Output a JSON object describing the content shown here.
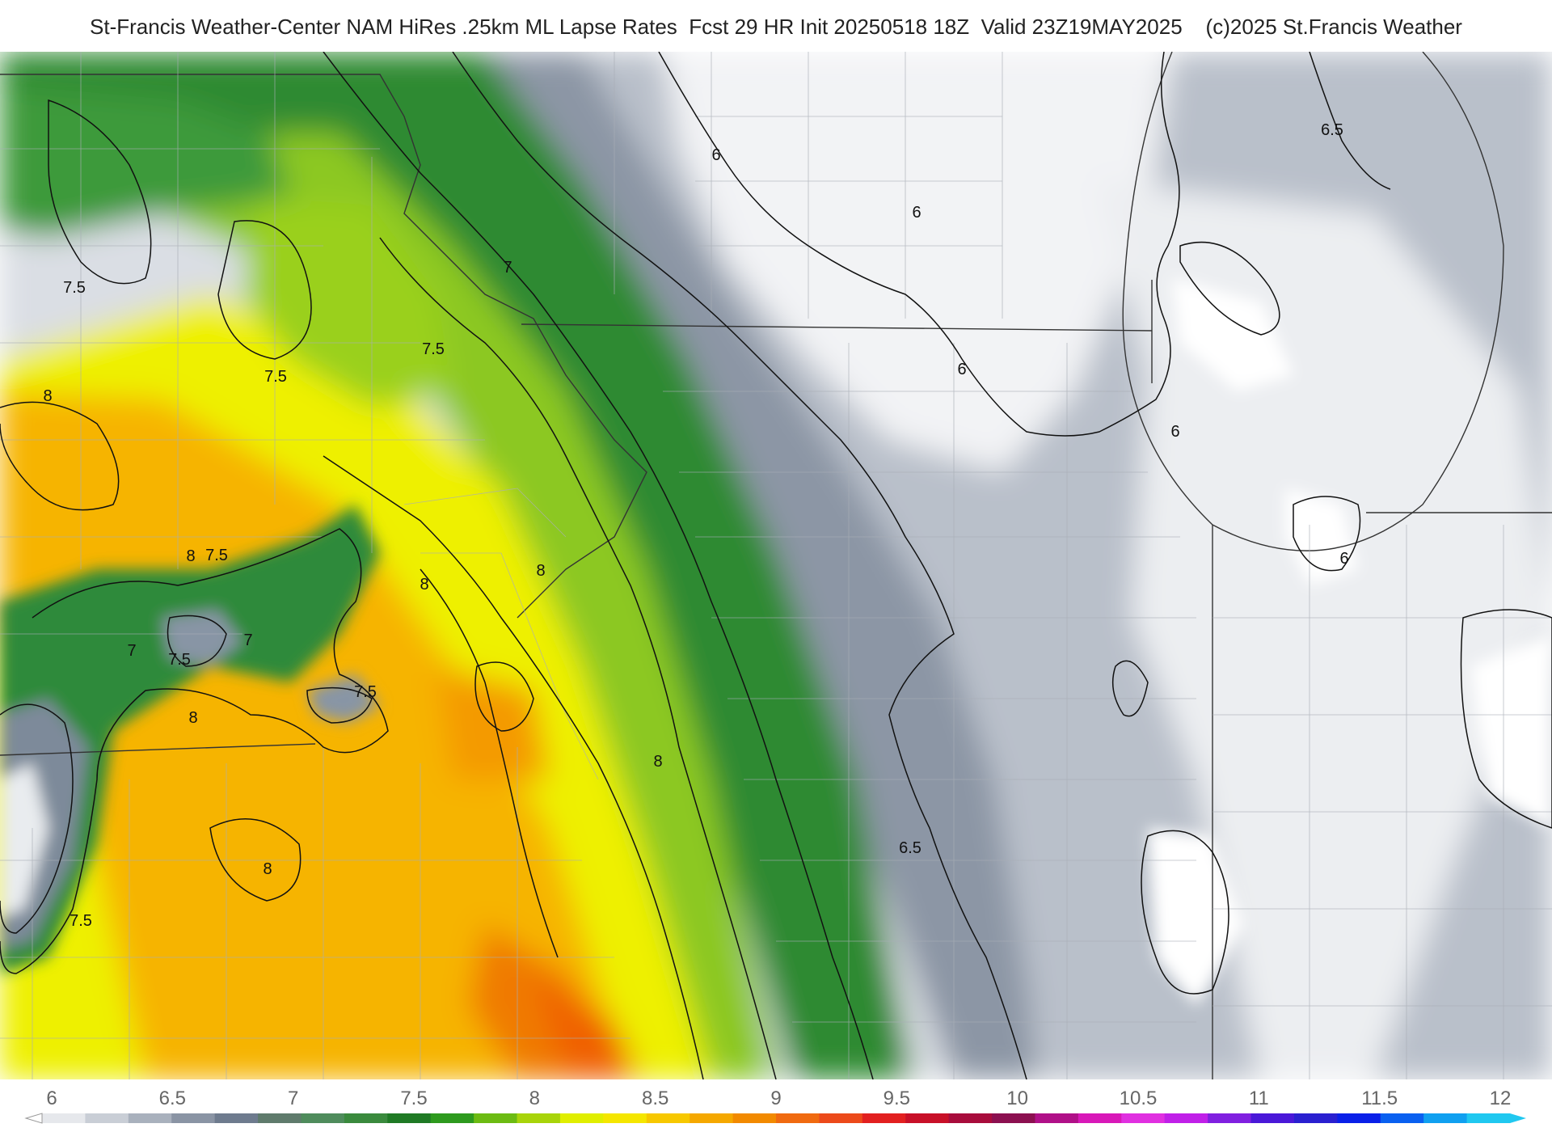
{
  "title": "St-Francis Weather-Center NAM HiRes .25km ML Lapse Rates  Fcst 29 HR Init 20250518 18Z  Valid 23Z19MAY2025    (c)2025 St.Francis Weather",
  "map": {
    "contour_labels": [
      {
        "text": "6"
      },
      {
        "text": "6"
      },
      {
        "text": "6"
      },
      {
        "text": "6"
      },
      {
        "text": "6"
      },
      {
        "text": "6.5"
      },
      {
        "text": "6.5"
      },
      {
        "text": "7"
      },
      {
        "text": "7"
      },
      {
        "text": "7"
      },
      {
        "text": "7.5"
      },
      {
        "text": "7.5"
      },
      {
        "text": "7.5"
      },
      {
        "text": "7.5"
      },
      {
        "text": "7.5"
      },
      {
        "text": "7.5"
      },
      {
        "text": "7.5"
      },
      {
        "text": "8"
      },
      {
        "text": "8"
      },
      {
        "text": "8"
      },
      {
        "text": "8"
      },
      {
        "text": "8"
      },
      {
        "text": "8"
      },
      {
        "text": "8"
      }
    ]
  },
  "colorbar": {
    "tick_labels": [
      "6",
      "6.5",
      "7",
      "7.5",
      "8",
      "8.5",
      "9",
      "9.5",
      "10",
      "10.5",
      "11",
      "11.5",
      "12"
    ],
    "colors": [
      "#e6e8ec",
      "#c9ced6",
      "#a9b1bd",
      "#8a94a4",
      "#6e7b8e",
      "#5f7b6c",
      "#4f8c5c",
      "#3a8a3d",
      "#1f7a25",
      "#2e9a1e",
      "#6cbb12",
      "#a8d40a",
      "#e0ee00",
      "#f5e600",
      "#f7c800",
      "#f5a800",
      "#f28a00",
      "#f06a10",
      "#ec4a1a",
      "#e22020",
      "#c81028",
      "#a80c3c",
      "#8c1050",
      "#b01088",
      "#d818b8",
      "#e030e0",
      "#c020e8",
      "#8020e0",
      "#4a18d8",
      "#2a20d0",
      "#0a20e8",
      "#0a60f0",
      "#10a0f0",
      "#20c8f0"
    ]
  }
}
